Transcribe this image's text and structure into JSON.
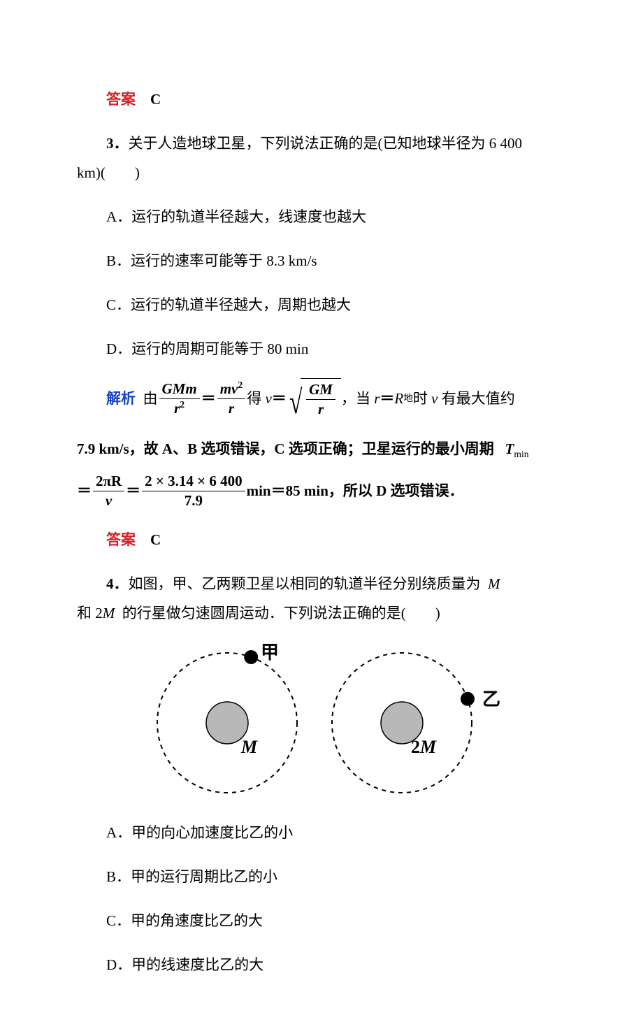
{
  "ans_label": "答案",
  "analysis_label": "解析",
  "q2_answer": "C",
  "q3": {
    "number": "3．",
    "stem_a": "关于人造地球卫星，下列说法正确的是(已知地球半径为 6 400",
    "stem_b": "km)(　　)",
    "optA": "A．运行的轨道半径越大，线速度也越大",
    "optB": "B．运行的速率可能等于 8.3 km/s",
    "optC": "C．运行的轨道半径越大，周期也越大",
    "optD": "D．运行的周期可能等于 80 min",
    "analysis": {
      "p1_a": "由",
      "f1_num": "GMm",
      "f1_den_r": "r",
      "f1_den_exp": "2",
      "eq1": "＝",
      "f2_num_m": "m",
      "f2_num_v": "v",
      "f2_num_exp": "2",
      "f2_den": "r",
      "p1_b": "得",
      "v": "v",
      "eq2": "＝",
      "f3_num": "GM",
      "f3_den": "r",
      "p1_c": "，当",
      "r": "r",
      "eq3": "＝",
      "R": "R",
      "sub_earth": "地",
      "p1_d": "时",
      "p1_e": "有最大值约",
      "p2_a": "7.9 km/s，故 A、B 选项错误，C 选项正确；卫星运行的最小周期",
      "T": "T",
      "sub_min": "min",
      "f4_num": "2πR",
      "f4_den": "v",
      "f5_num": "2 × 3.14 × 6 400",
      "f5_den": "7.9",
      "p3_b": "min＝85 min，所以 D 选项错误．"
    },
    "answer": "C"
  },
  "q4": {
    "number": "4．",
    "stem_a": "如图，甲、乙两颗卫星以相同的轨道半径分别绕质量为",
    "M": "M",
    "stem_b": "和 2",
    "stem_c": "的行星做匀速圆周运动．下列说法正确的是(　　)",
    "optA": "A．甲的向心加速度比乙的小",
    "optB": "B．甲的运行周期比乙的小",
    "optC": "C．甲的角速度比乙的大",
    "optD": "D．甲的线速度比乙的大",
    "fig": {
      "orbit_stroke": "#000000",
      "orbit_dash": "6,6",
      "orbit_r": 100,
      "planet_r": 30,
      "planet_fill": "#b8b8b8",
      "sat_r": 10,
      "sat_fill": "#000000",
      "left_label": "M",
      "left_sat_label": "甲",
      "right_label": "2M",
      "right_sat_label": "乙",
      "label_fontsize": 26
    }
  }
}
